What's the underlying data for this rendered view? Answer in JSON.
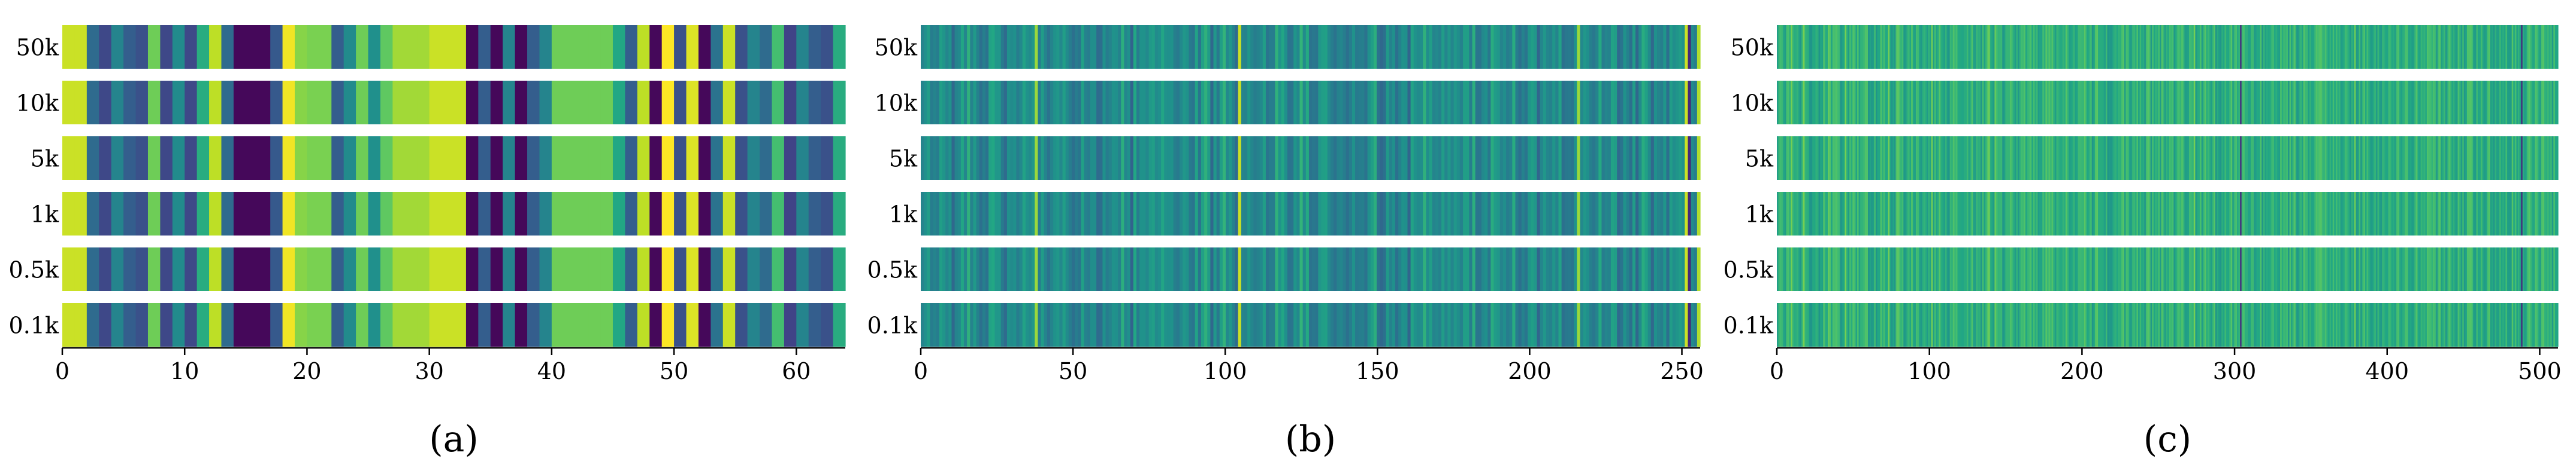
{
  "chart_data": [
    {
      "type": "heatmap",
      "caption": "(a)",
      "rows": [
        "50k",
        "10k",
        "5k",
        "1k",
        "0.5k",
        "0.1k"
      ],
      "x_ticks": [
        0,
        10,
        20,
        30,
        40,
        50,
        60
      ],
      "xlim": [
        0,
        64
      ],
      "colormap": "viridis",
      "columns": 64,
      "values": [
        0.92,
        0.92,
        0.35,
        0.22,
        0.45,
        0.3,
        0.25,
        0.78,
        0.22,
        0.48,
        0.22,
        0.62,
        0.9,
        0.35,
        0.02,
        0.02,
        0.02,
        0.28,
        0.98,
        0.82,
        0.8,
        0.8,
        0.3,
        0.48,
        0.78,
        0.5,
        0.75,
        0.86,
        0.86,
        0.86,
        0.92,
        0.92,
        0.92,
        0.02,
        0.3,
        0.02,
        0.45,
        0.02,
        0.3,
        0.45,
        0.78,
        0.78,
        0.78,
        0.78,
        0.78,
        0.6,
        0.3,
        0.9,
        0.02,
        1.0,
        0.25,
        0.95,
        0.02,
        0.38,
        0.92,
        0.25,
        0.45,
        0.35,
        0.7,
        0.2,
        0.45,
        0.3,
        0.25,
        0.62
      ]
    },
    {
      "type": "heatmap",
      "caption": "(b)",
      "rows": [
        "50k",
        "10k",
        "5k",
        "1k",
        "0.5k",
        "0.1k"
      ],
      "x_ticks": [
        0,
        50,
        100,
        150,
        200,
        250
      ],
      "xlim": [
        0,
        256
      ],
      "colormap": "viridis",
      "columns": 256,
      "values": [
        0.45,
        0.5,
        0.55,
        0.42,
        0.45,
        0.42,
        0.56,
        0.52,
        0.46,
        0.51,
        0.34,
        0.45,
        0.47,
        0.59,
        0.46,
        0.64,
        0.45,
        0.54,
        0.44,
        0.37,
        0.43,
        0.38,
        0.58,
        0.6,
        0.53,
        0.53,
        0.41,
        0.35,
        0.5,
        0.48,
        0.5,
        0.42,
        0.47,
        0.58,
        0.51,
        0.48,
        0.53,
        0.85,
        0.42,
        0.55,
        0.45,
        0.38,
        0.45,
        0.51,
        0.53,
        0.47,
        0.56,
        0.48,
        0.42,
        0.37,
        0.42,
        0.39,
        0.57,
        0.44,
        0.42,
        0.49,
        0.49,
        0.35,
        0.36,
        0.5,
        0.42,
        0.45,
        0.51,
        0.5,
        0.44,
        0.63,
        0.46,
        0.5,
        0.32,
        0.6,
        0.42,
        0.51,
        0.51,
        0.47,
        0.54,
        0.56,
        0.48,
        0.5,
        0.59,
        0.51,
        0.5,
        0.51,
        0.43,
        0.41,
        0.47,
        0.53,
        0.51,
        0.41,
        0.39,
        0.58,
        0.39,
        0.57,
        0.64,
        0.55,
        0.34,
        0.53,
        0.41,
        0.56,
        0.65,
        0.47,
        0.53,
        0.44,
        0.35,
        0.92,
        0.45,
        0.44,
        0.52,
        0.46,
        0.42,
        0.44,
        0.47,
        0.56,
        0.39,
        0.42,
        0.42,
        0.64,
        0.52,
        0.59,
        0.5,
        0.38,
        0.39,
        0.52,
        0.47,
        0.65,
        0.48,
        0.61,
        0.38,
        0.4,
        0.39,
        0.53,
        0.56,
        0.57,
        0.47,
        0.42,
        0.38,
        0.44,
        0.46,
        0.42,
        0.37,
        0.42,
        0.51,
        0.41,
        0.42,
        0.43,
        0.38,
        0.5,
        0.56,
        0.63,
        0.38,
        0.34,
        0.37,
        0.54,
        0.44,
        0.5,
        0.37,
        0.44,
        0.51,
        0.5,
        0.33,
        0.58,
        0.51,
        0.48,
        0.49,
        0.64,
        0.49,
        0.56,
        0.45,
        0.47,
        0.44,
        0.55,
        0.46,
        0.53,
        0.46,
        0.53,
        0.49,
        0.44,
        0.56,
        0.56,
        0.42,
        0.63,
        0.39,
        0.39,
        0.47,
        0.5,
        0.4,
        0.62,
        0.55,
        0.53,
        0.45,
        0.49,
        0.42,
        0.45,
        0.62,
        0.42,
        0.37,
        0.44,
        0.39,
        0.52,
        0.56,
        0.53,
        0.33,
        0.46,
        0.53,
        0.46,
        0.44,
        0.52,
        0.45,
        0.58,
        0.37,
        0.4,
        0.41,
        0.39,
        0.51,
        0.85,
        0.47,
        0.53,
        0.5,
        0.43,
        0.4,
        0.45,
        0.61,
        0.42,
        0.46,
        0.44,
        0.58,
        0.56,
        0.35,
        0.39,
        0.51,
        0.44,
        0.37,
        0.55,
        0.34,
        0.48,
        0.62,
        0.57,
        0.48,
        0.34,
        0.5,
        0.45,
        0.43,
        0.52,
        0.37,
        0.55,
        0.49,
        0.52,
        0.55,
        0.51,
        0.92,
        0.12,
        0.48,
        0.42,
        0.88
      ]
    },
    {
      "type": "heatmap",
      "caption": "(c)",
      "rows": [
        "50k",
        "10k",
        "5k",
        "1k",
        "0.5k",
        "0.1k"
      ],
      "x_ticks": [
        0,
        100,
        200,
        300,
        400,
        500
      ],
      "xlim": [
        0,
        512
      ],
      "colormap": "viridis",
      "columns": 512,
      "values": [
        0.56,
        0.67,
        0.69,
        0.67,
        0.59,
        0.55,
        0.7,
        0.71,
        0.63,
        0.79,
        0.66,
        0.62,
        0.63,
        0.65,
        0.58,
        0.53,
        0.67,
        0.79,
        0.65,
        0.64,
        0.62,
        0.52,
        0.52,
        0.61,
        0.6,
        0.64,
        0.63,
        0.52,
        0.59,
        0.57,
        0.72,
        0.63,
        0.61,
        0.76,
        0.72,
        0.59,
        0.71,
        0.7,
        0.72,
        0.69,
        0.67,
        0.52,
        0.58,
        0.6,
        0.79,
        0.64,
        0.55,
        0.7,
        0.62,
        0.72,
        0.7,
        0.58,
        0.71,
        0.58,
        0.65,
        0.65,
        0.68,
        0.72,
        0.72,
        0.52,
        0.58,
        0.54,
        0.56,
        0.69,
        0.52,
        0.6,
        0.59,
        0.72,
        0.63,
        0.7,
        0.61,
        0.6,
        0.79,
        0.6,
        0.53,
        0.59,
        0.53,
        0.72,
        0.75,
        0.71,
        0.65,
        0.69,
        0.54,
        0.55,
        0.64,
        0.67,
        0.6,
        0.73,
        0.6,
        0.56,
        0.7,
        0.68,
        0.59,
        0.54,
        0.62,
        0.65,
        0.62,
        0.55,
        0.65,
        0.58,
        0.79,
        0.56,
        0.7,
        0.58,
        0.63,
        0.73,
        0.62,
        0.61,
        0.56,
        0.65,
        0.55,
        0.53,
        0.67,
        0.64,
        0.72,
        0.67,
        0.7,
        0.61,
        0.61,
        0.6,
        0.59,
        0.62,
        0.62,
        0.68,
        0.58,
        0.63,
        0.72,
        0.58,
        0.55,
        0.67,
        0.63,
        0.64,
        0.53,
        0.7,
        0.57,
        0.65,
        0.73,
        0.78,
        0.63,
        0.59,
        0.55,
        0.76,
        0.7,
        0.65,
        0.66,
        0.67,
        0.53,
        0.57,
        0.66,
        0.66,
        0.66,
        0.72,
        0.67,
        0.62,
        0.55,
        0.65,
        0.54,
        0.64,
        0.69,
        0.68,
        0.72,
        0.59,
        0.66,
        0.68,
        0.71,
        0.6,
        0.7,
        0.62,
        0.67,
        0.55,
        0.59,
        0.58,
        0.69,
        0.63,
        0.73,
        0.67,
        0.72,
        0.67,
        0.72,
        0.63,
        0.56,
        0.66,
        0.64,
        0.61,
        0.61,
        0.65,
        0.62,
        0.73,
        0.66,
        0.56,
        0.58,
        0.61,
        0.66,
        0.57,
        0.59,
        0.68,
        0.68,
        0.67,
        0.66,
        0.74,
        0.65,
        0.6,
        0.64,
        0.69,
        0.52,
        0.59,
        0.72,
        0.74,
        0.62,
        0.62,
        0.62,
        0.61,
        0.56,
        0.68,
        0.52,
        0.55,
        0.53,
        0.58,
        0.63,
        0.64,
        0.6,
        0.65,
        0.63,
        0.7,
        0.73,
        0.56,
        0.7,
        0.69,
        0.59,
        0.55,
        0.65,
        0.67,
        0.62,
        0.71,
        0.58,
        0.68,
        0.6,
        0.62,
        0.53,
        0.7,
        0.73,
        0.7,
        0.54,
        0.7,
        0.59,
        0.65,
        0.62,
        0.7,
        0.55,
        0.73,
        0.66,
        0.55,
        0.65,
        0.6,
        0.7,
        0.67,
        0.7,
        0.54,
        0.6,
        0.68,
        0.7,
        0.66,
        0.72,
        0.67,
        0.56,
        0.56,
        0.58,
        0.69,
        0.67,
        0.65,
        0.79,
        0.55,
        0.61,
        0.62,
        0.71,
        0.55,
        0.66,
        0.73,
        0.62,
        0.67,
        0.62,
        0.56,
        0.66,
        0.73,
        0.52,
        0.62,
        0.56,
        0.53,
        0.63,
        0.59,
        0.68,
        0.61,
        0.6,
        0.66,
        0.73,
        0.57,
        0.67,
        0.71,
        0.61,
        0.65,
        0.15,
        0.68,
        0.71,
        0.63,
        0.64,
        0.58,
        0.58,
        0.68,
        0.68,
        0.54,
        0.58,
        0.61,
        0.6,
        0.72,
        0.52,
        0.66,
        0.57,
        0.62,
        0.59,
        0.61,
        0.66,
        0.69,
        0.6,
        0.63,
        0.59,
        0.56,
        0.71,
        0.62,
        0.68,
        0.66,
        0.69,
        0.53,
        0.71,
        0.58,
        0.68,
        0.73,
        0.57,
        0.53,
        0.62,
        0.66,
        0.58,
        0.73,
        0.67,
        0.67,
        0.57,
        0.65,
        0.59,
        0.59,
        0.65,
        0.72,
        0.7,
        0.72,
        0.73,
        0.67,
        0.65,
        0.71,
        0.63,
        0.59,
        0.65,
        0.6,
        0.7,
        0.6,
        0.69,
        0.62,
        0.66,
        0.56,
        0.58,
        0.62,
        0.69,
        0.65,
        0.62,
        0.53,
        0.64,
        0.59,
        0.78,
        0.54,
        0.56,
        0.69,
        0.54,
        0.65,
        0.72,
        0.6,
        0.69,
        0.63,
        0.57,
        0.55,
        0.61,
        0.66,
        0.55,
        0.66,
        0.58,
        0.54,
        0.66,
        0.63,
        0.6,
        0.59,
        0.68,
        0.66,
        0.6,
        0.62,
        0.56,
        0.68,
        0.72,
        0.62,
        0.57,
        0.62,
        0.64,
        0.71,
        0.7,
        0.58,
        0.6,
        0.56,
        0.57,
        0.67,
        0.72,
        0.6,
        0.58,
        0.66,
        0.63,
        0.65,
        0.61,
        0.72,
        0.7,
        0.69,
        0.65,
        0.71,
        0.67,
        0.53,
        0.7,
        0.73,
        0.57,
        0.62,
        0.67,
        0.53,
        0.63,
        0.72,
        0.68,
        0.59,
        0.64,
        0.58,
        0.56,
        0.71,
        0.65,
        0.55,
        0.68,
        0.53,
        0.59,
        0.72,
        0.72,
        0.73,
        0.69,
        0.56,
        0.55,
        0.68,
        0.59,
        0.61,
        0.69,
        0.59,
        0.55,
        0.58,
        0.7,
        0.73,
        0.56,
        0.61,
        0.53,
        0.64,
        0.57,
        0.57,
        0.67,
        0.59,
        0.63,
        0.59,
        0.69,
        0.57,
        0.55,
        0.55,
        0.73,
        0.6,
        0.7,
        0.58,
        0.65,
        0.56,
        0.15,
        0.62,
        0.55,
        0.61,
        0.71,
        0.73,
        0.66,
        0.61,
        0.59,
        0.72,
        0.69,
        0.62,
        0.55,
        0.71,
        0.73,
        0.65,
        0.63,
        0.67,
        0.62,
        0.67,
        0.54,
        0.71,
        0.6,
        0.6
      ]
    }
  ]
}
